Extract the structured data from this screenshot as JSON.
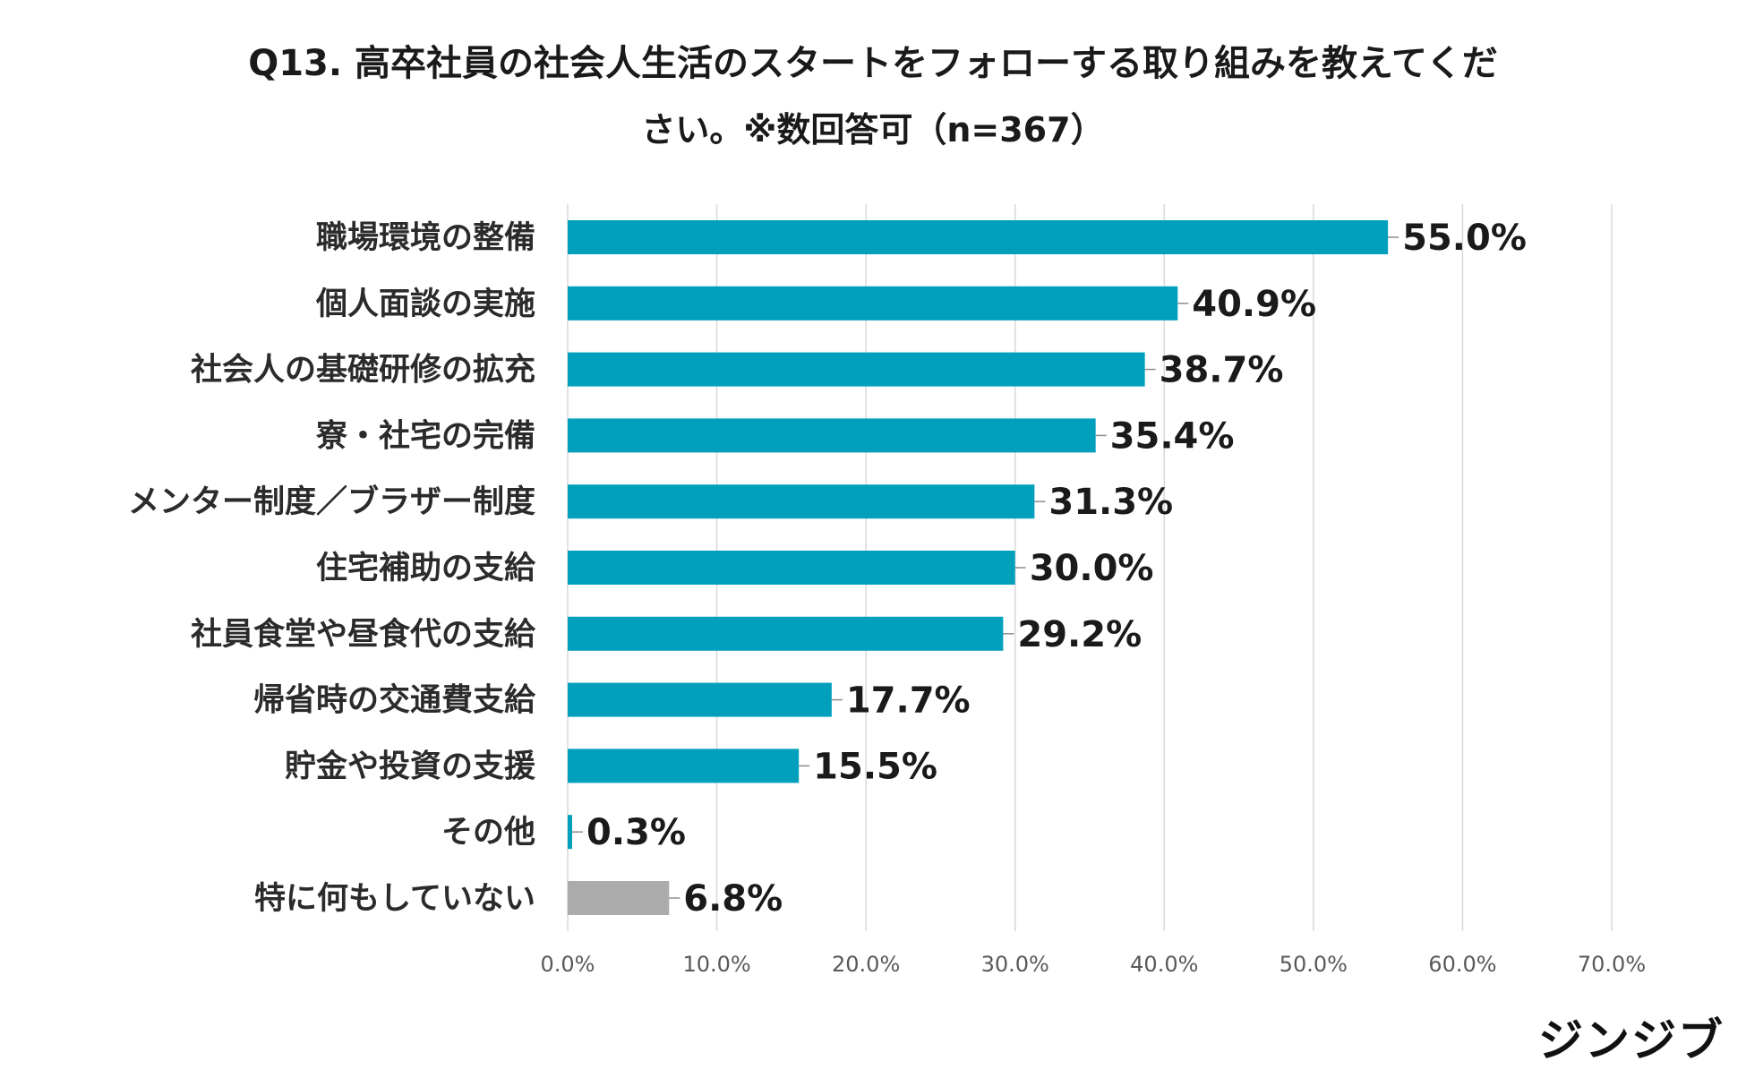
{
  "title": {
    "line1": "Q13. 高卒社員の社会人生活のスタートをフォローする取り組みを教えてくだ",
    "line2": "さい。※数回答可（n=367）"
  },
  "brand": "ジンジブ",
  "colors": {
    "bar": "#00a0bd",
    "bar_none": "#ababab",
    "grid": "#d9d9d9",
    "text": "#1a1a1a",
    "tick": "#595959",
    "leader": "#8c8c8c"
  },
  "chart_data": {
    "type": "bar",
    "orientation": "horizontal",
    "categories": [
      "職場環境の整備",
      "個人面談の実施",
      "社会人の基礎研修の拡充",
      "寮・社宅の完備",
      "メンター制度／ブラザー制度",
      "住宅補助の支給",
      "社員食堂や昼食代の支給",
      "帰省時の交通費支給",
      "貯金や投資の支援",
      "その他",
      "特に何もしていない"
    ],
    "values": [
      55.0,
      40.9,
      38.7,
      35.4,
      31.3,
      30.0,
      29.2,
      17.7,
      15.5,
      0.3,
      6.8
    ],
    "value_labels": [
      "55.0%",
      "40.9%",
      "38.7%",
      "35.4%",
      "31.3%",
      "30.0%",
      "29.2%",
      "17.7%",
      "15.5%",
      "0.3%",
      "6.8%"
    ],
    "highlight": [
      false,
      false,
      false,
      false,
      false,
      false,
      false,
      false,
      false,
      false,
      true
    ],
    "xlim": [
      0,
      70
    ],
    "xticks": [
      0,
      10,
      20,
      30,
      40,
      50,
      60,
      70
    ],
    "xtick_labels": [
      "0.0%",
      "10.0%",
      "20.0%",
      "30.0%",
      "40.0%",
      "50.0%",
      "60.0%",
      "70.0%"
    ],
    "xlabel": "",
    "ylabel": "",
    "grid": true,
    "legend": "none"
  }
}
